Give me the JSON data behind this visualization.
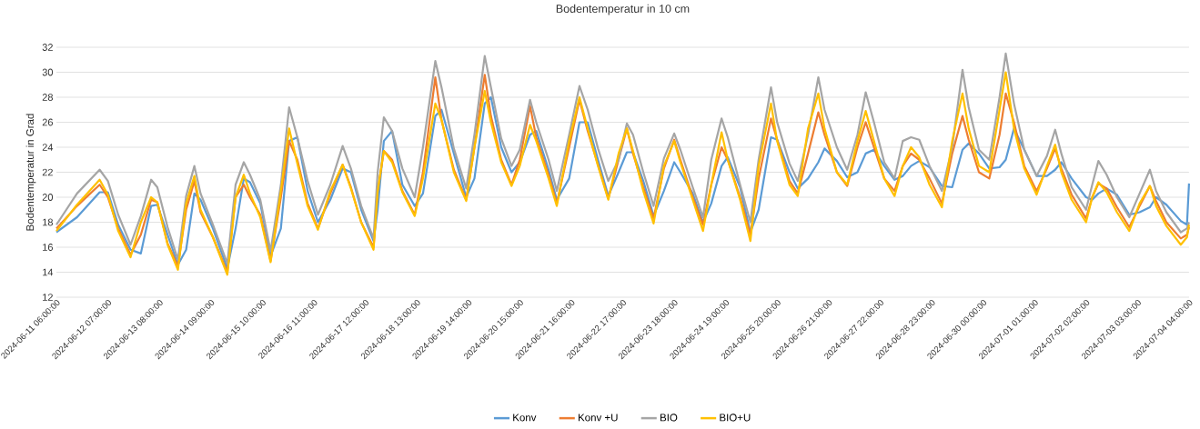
{
  "chart_data": {
    "type": "line",
    "title": "Bodentemperatur  in 10 cm",
    "ylabel": "Bodentemperatur in Grad",
    "x": [
      "2024-06-11T06:00",
      "2024-06-11T16:00",
      "2024-06-12T03:00",
      "2024-06-12T07:00",
      "2024-06-12T12:00",
      "2024-06-12T18:00",
      "2024-06-12T23:00",
      "2024-06-13T04:00",
      "2024-06-13T07:00",
      "2024-06-13T12:00",
      "2024-06-13T17:00",
      "2024-06-13T21:00",
      "2024-06-14T01:00",
      "2024-06-14T04:00",
      "2024-06-14T10:00",
      "2024-06-14T17:00",
      "2024-06-14T21:00",
      "2024-06-15T01:00",
      "2024-06-15T04:00",
      "2024-06-15T09:00",
      "2024-06-15T14:00",
      "2024-06-15T19:00",
      "2024-06-15T23:00",
      "2024-06-16T03:00",
      "2024-06-16T08:00",
      "2024-06-16T13:00",
      "2024-06-16T19:00",
      "2024-06-17T01:00",
      "2024-06-17T05:00",
      "2024-06-17T10:00",
      "2024-06-17T16:00",
      "2024-06-17T18:00",
      "2024-06-17T21:00",
      "2024-06-18T01:00",
      "2024-06-18T06:00",
      "2024-06-18T12:00",
      "2024-06-18T16:00",
      "2024-06-18T22:00",
      "2024-06-19T01:00",
      "2024-06-19T07:00",
      "2024-06-19T13:00",
      "2024-06-19T17:00",
      "2024-06-19T22:00",
      "2024-06-20T01:00",
      "2024-06-20T06:00",
      "2024-06-20T11:00",
      "2024-06-20T15:00",
      "2024-06-20T20:00",
      "2024-06-20T23:00",
      "2024-06-21T05:00",
      "2024-06-21T09:00",
      "2024-06-21T15:00",
      "2024-06-21T20:00",
      "2024-06-22T00:00",
      "2024-06-22T05:00",
      "2024-06-22T10:00",
      "2024-06-22T15:00",
      "2024-06-22T19:00",
      "2024-06-22T22:00",
      "2024-06-23T03:00",
      "2024-06-23T08:00",
      "2024-06-23T13:00",
      "2024-06-23T18:00",
      "2024-06-23T21:00",
      "2024-06-24T03:00",
      "2024-06-24T08:00",
      "2024-06-24T12:00",
      "2024-06-24T17:00",
      "2024-06-24T20:00",
      "2024-06-25T02:00",
      "2024-06-25T07:00",
      "2024-06-25T11:00",
      "2024-06-25T17:00",
      "2024-06-25T20:00",
      "2024-06-26T02:00",
      "2024-06-26T06:00",
      "2024-06-26T11:00",
      "2024-06-26T16:00",
      "2024-06-26T19:00",
      "2024-06-27T01:00",
      "2024-06-27T06:00",
      "2024-06-27T11:00",
      "2024-06-27T15:00",
      "2024-06-27T19:00",
      "2024-06-28T00:00",
      "2024-06-28T05:00",
      "2024-06-28T09:00",
      "2024-06-28T13:00",
      "2024-06-28T17:00",
      "2024-06-28T22:00",
      "2024-06-29T04:00",
      "2024-06-29T09:00",
      "2024-06-29T14:00",
      "2024-06-29T17:00",
      "2024-06-29T22:00",
      "2024-06-30T03:00",
      "2024-06-30T08:00",
      "2024-06-30T11:00",
      "2024-06-30T15:00",
      "2024-06-30T20:00",
      "2024-07-01T02:00",
      "2024-07-01T07:00",
      "2024-07-01T11:00",
      "2024-07-01T14:00",
      "2024-07-01T19:00",
      "2024-07-02T02:00",
      "2024-07-02T05:00",
      "2024-07-02T08:00",
      "2024-07-02T12:00",
      "2024-07-02T17:00",
      "2024-07-02T23:00",
      "2024-07-03T04:00",
      "2024-07-03T09:00",
      "2024-07-03T12:00",
      "2024-07-03T17:00",
      "2024-07-04T00:00",
      "2024-07-04T03:00",
      "2024-07-04T04:00"
    ],
    "series": [
      {
        "name": "Konv",
        "color": "#5b9bd5",
        "values": [
          17.2,
          18.4,
          20.4,
          20.4,
          17.8,
          15.8,
          15.5,
          19.3,
          19.4,
          17.0,
          14.6,
          15.8,
          20.3,
          19.8,
          17.5,
          14.3,
          17.5,
          21.5,
          21.2,
          19.5,
          15.3,
          17.5,
          24.5,
          24.8,
          20.5,
          18.0,
          19.8,
          22.3,
          22.0,
          19.0,
          16.5,
          19.0,
          24.5,
          25.3,
          21.0,
          19.3,
          20.3,
          26.5,
          27.0,
          23.5,
          20.0,
          21.5,
          27.5,
          28.0,
          24.0,
          22.0,
          22.8,
          25.0,
          25.3,
          22.2,
          19.8,
          21.5,
          26.0,
          26.0,
          23.0,
          20.1,
          22.0,
          23.6,
          23.6,
          21.3,
          18.5,
          20.5,
          22.8,
          22.0,
          20.3,
          18.0,
          19.5,
          22.5,
          23.2,
          20.8,
          17.2,
          19.0,
          24.8,
          24.6,
          22.0,
          20.7,
          21.5,
          22.8,
          23.9,
          22.9,
          21.6,
          22.0,
          23.5,
          23.8,
          22.5,
          21.4,
          21.7,
          22.5,
          22.9,
          22.4,
          20.9,
          20.8,
          23.8,
          24.3,
          23.5,
          22.3,
          22.4,
          23.0,
          25.5,
          23.8,
          21.7,
          21.7,
          22.2,
          22.8,
          21.5,
          20.0,
          19.8,
          20.3,
          20.7,
          20.2,
          18.6,
          18.8,
          19.2,
          20.0,
          19.4,
          18.1,
          17.8,
          21.1
        ]
      },
      {
        "name": "Konv +U",
        "color": "#ed7d31",
        "values": [
          17.5,
          19.3,
          21.0,
          20.0,
          17.5,
          15.4,
          17.0,
          19.8,
          19.6,
          16.3,
          14.5,
          19.0,
          21.3,
          18.8,
          16.8,
          14.0,
          20.0,
          21.0,
          20.0,
          18.6,
          14.9,
          20.0,
          24.5,
          23.0,
          19.5,
          17.5,
          20.3,
          22.6,
          20.8,
          18.0,
          16.0,
          20.5,
          23.7,
          23.0,
          20.5,
          18.6,
          22.0,
          29.6,
          26.2,
          22.2,
          19.8,
          24.0,
          29.8,
          26.5,
          23.0,
          21.0,
          23.0,
          27.3,
          24.8,
          21.8,
          19.5,
          24.0,
          27.8,
          25.3,
          22.6,
          19.9,
          23.0,
          25.5,
          23.5,
          20.8,
          18.3,
          22.3,
          24.6,
          23.0,
          20.0,
          17.8,
          21.0,
          24.0,
          23.0,
          20.0,
          17.0,
          21.5,
          26.3,
          24.6,
          21.3,
          20.3,
          23.5,
          26.8,
          25.0,
          22.0,
          20.9,
          24.0,
          26.0,
          24.0,
          21.5,
          20.5,
          22.5,
          23.5,
          23.0,
          21.5,
          19.5,
          23.5,
          26.5,
          24.6,
          22.0,
          21.5,
          25.0,
          28.3,
          26.0,
          22.5,
          20.5,
          22.3,
          23.9,
          22.3,
          20.2,
          18.3,
          20.0,
          21.1,
          20.7,
          19.2,
          17.6,
          19.3,
          20.9,
          19.7,
          18.0,
          16.7,
          17.0,
          17.6
        ]
      },
      {
        "name": "BIO",
        "color": "#a5a5a5",
        "values": [
          17.8,
          20.3,
          22.2,
          21.3,
          18.6,
          16.2,
          18.5,
          21.4,
          20.8,
          17.6,
          15.0,
          20.1,
          22.5,
          20.3,
          17.8,
          14.7,
          21.0,
          22.8,
          21.8,
          19.8,
          15.7,
          21.0,
          27.2,
          24.8,
          21.3,
          18.6,
          21.0,
          24.1,
          22.3,
          19.3,
          16.7,
          22.0,
          26.4,
          25.3,
          22.3,
          20.0,
          24.0,
          30.9,
          28.8,
          23.9,
          20.7,
          25.0,
          31.3,
          28.8,
          24.7,
          22.5,
          23.8,
          27.8,
          26.0,
          23.0,
          20.5,
          25.0,
          28.9,
          27.0,
          23.9,
          21.3,
          23.0,
          25.9,
          25.0,
          22.0,
          19.3,
          23.1,
          25.1,
          23.8,
          20.8,
          18.4,
          23.0,
          26.3,
          24.8,
          21.0,
          18.0,
          23.0,
          28.8,
          26.0,
          22.7,
          21.3,
          25.0,
          29.6,
          27.0,
          24.0,
          22.2,
          25.0,
          28.4,
          26.0,
          22.8,
          21.5,
          24.5,
          24.8,
          24.6,
          22.5,
          20.5,
          24.0,
          30.2,
          27.2,
          23.8,
          23.0,
          28.0,
          31.5,
          27.5,
          23.8,
          21.7,
          23.3,
          25.4,
          23.5,
          20.8,
          19.0,
          21.0,
          22.9,
          21.8,
          20.0,
          18.4,
          20.3,
          22.2,
          20.5,
          18.8,
          17.2,
          17.5,
          18.0
        ]
      },
      {
        "name": "BIO+U",
        "color": "#ffc000",
        "values": [
          17.3,
          19.4,
          21.4,
          20.2,
          17.3,
          15.2,
          18.0,
          20.0,
          19.6,
          16.2,
          14.2,
          19.5,
          21.7,
          19.0,
          16.8,
          13.8,
          20.0,
          21.8,
          20.3,
          18.4,
          14.8,
          20.5,
          25.5,
          22.7,
          19.3,
          17.4,
          20.5,
          22.6,
          20.7,
          18.0,
          15.8,
          20.5,
          23.7,
          22.8,
          20.4,
          18.5,
          21.5,
          27.5,
          26.2,
          22.0,
          19.7,
          24.0,
          28.5,
          26.0,
          22.8,
          20.9,
          22.5,
          25.8,
          24.5,
          21.5,
          19.3,
          24.5,
          28.0,
          25.5,
          22.5,
          19.8,
          23.5,
          25.5,
          23.7,
          20.5,
          17.9,
          22.5,
          24.5,
          22.8,
          19.8,
          17.3,
          21.0,
          25.2,
          23.0,
          19.8,
          16.5,
          22.5,
          27.5,
          24.5,
          21.0,
          20.1,
          25.5,
          28.3,
          25.5,
          22.0,
          21.0,
          24.5,
          26.9,
          24.5,
          21.5,
          20.1,
          22.5,
          24.0,
          23.2,
          21.0,
          19.2,
          24.5,
          28.3,
          25.5,
          22.5,
          22.0,
          27.0,
          30.0,
          25.5,
          22.3,
          20.2,
          22.5,
          24.2,
          22.0,
          19.8,
          18.0,
          20.0,
          21.2,
          20.4,
          18.8,
          17.3,
          19.5,
          20.9,
          19.3,
          17.7,
          16.2,
          16.8,
          17.8
        ]
      }
    ],
    "xlim": [
      "2024-06-11T06:00",
      "2024-07-04T04:00"
    ],
    "xticks": [
      {
        "value": "2024-06-11T06:00",
        "label": "2024-06-11 06:00:00"
      },
      {
        "value": "2024-06-12T07:00",
        "label": "2024-06-12 07:00:00"
      },
      {
        "value": "2024-06-13T08:00",
        "label": "2024-06-13 08:00:00"
      },
      {
        "value": "2024-06-14T09:00",
        "label": "2024-06-14 09:00:00"
      },
      {
        "value": "2024-06-15T10:00",
        "label": "2024-06-15 10:00:00"
      },
      {
        "value": "2024-06-16T11:00",
        "label": "2024-06-16 11:00:00"
      },
      {
        "value": "2024-06-17T12:00",
        "label": "2024-06-17 12:00:00"
      },
      {
        "value": "2024-06-18T13:00",
        "label": "2024-06-18 13:00:00"
      },
      {
        "value": "2024-06-19T14:00",
        "label": "2024-06-19 14:00:00"
      },
      {
        "value": "2024-06-20T15:00",
        "label": "2024-06-20 15:00:00"
      },
      {
        "value": "2024-06-21T16:00",
        "label": "2024-06-21 16:00:00"
      },
      {
        "value": "2024-06-22T17:00",
        "label": "2024-06-22 17:00:00"
      },
      {
        "value": "2024-06-23T18:00",
        "label": "2024-06-23 18:00:00"
      },
      {
        "value": "2024-06-24T19:00",
        "label": "2024-06-24 19:00:00"
      },
      {
        "value": "2024-06-25T20:00",
        "label": "2024-06-25 20:00:00"
      },
      {
        "value": "2024-06-26T21:00",
        "label": "2024-06-26 21:00:00"
      },
      {
        "value": "2024-06-27T22:00",
        "label": "2024-06-27 22:00:00"
      },
      {
        "value": "2024-06-28T23:00",
        "label": "2024-06-28 23:00:00"
      },
      {
        "value": "2024-06-30T00:00",
        "label": "2024-06-30 00:00:00"
      },
      {
        "value": "2024-07-01T01:00",
        "label": "2024-07-01 01:00:00"
      },
      {
        "value": "2024-07-02T02:00",
        "label": "2024-07-02 02:00:00"
      },
      {
        "value": "2024-07-03T03:00",
        "label": "2024-07-03 03:00:00"
      },
      {
        "value": "2024-07-04T04:00",
        "label": "2024-07-04 04:00:00"
      }
    ],
    "ylim": [
      12,
      32
    ],
    "yticks": [
      12,
      14,
      16,
      18,
      20,
      22,
      24,
      26,
      28,
      30,
      32
    ],
    "grid": "y",
    "legend": "bottom"
  }
}
